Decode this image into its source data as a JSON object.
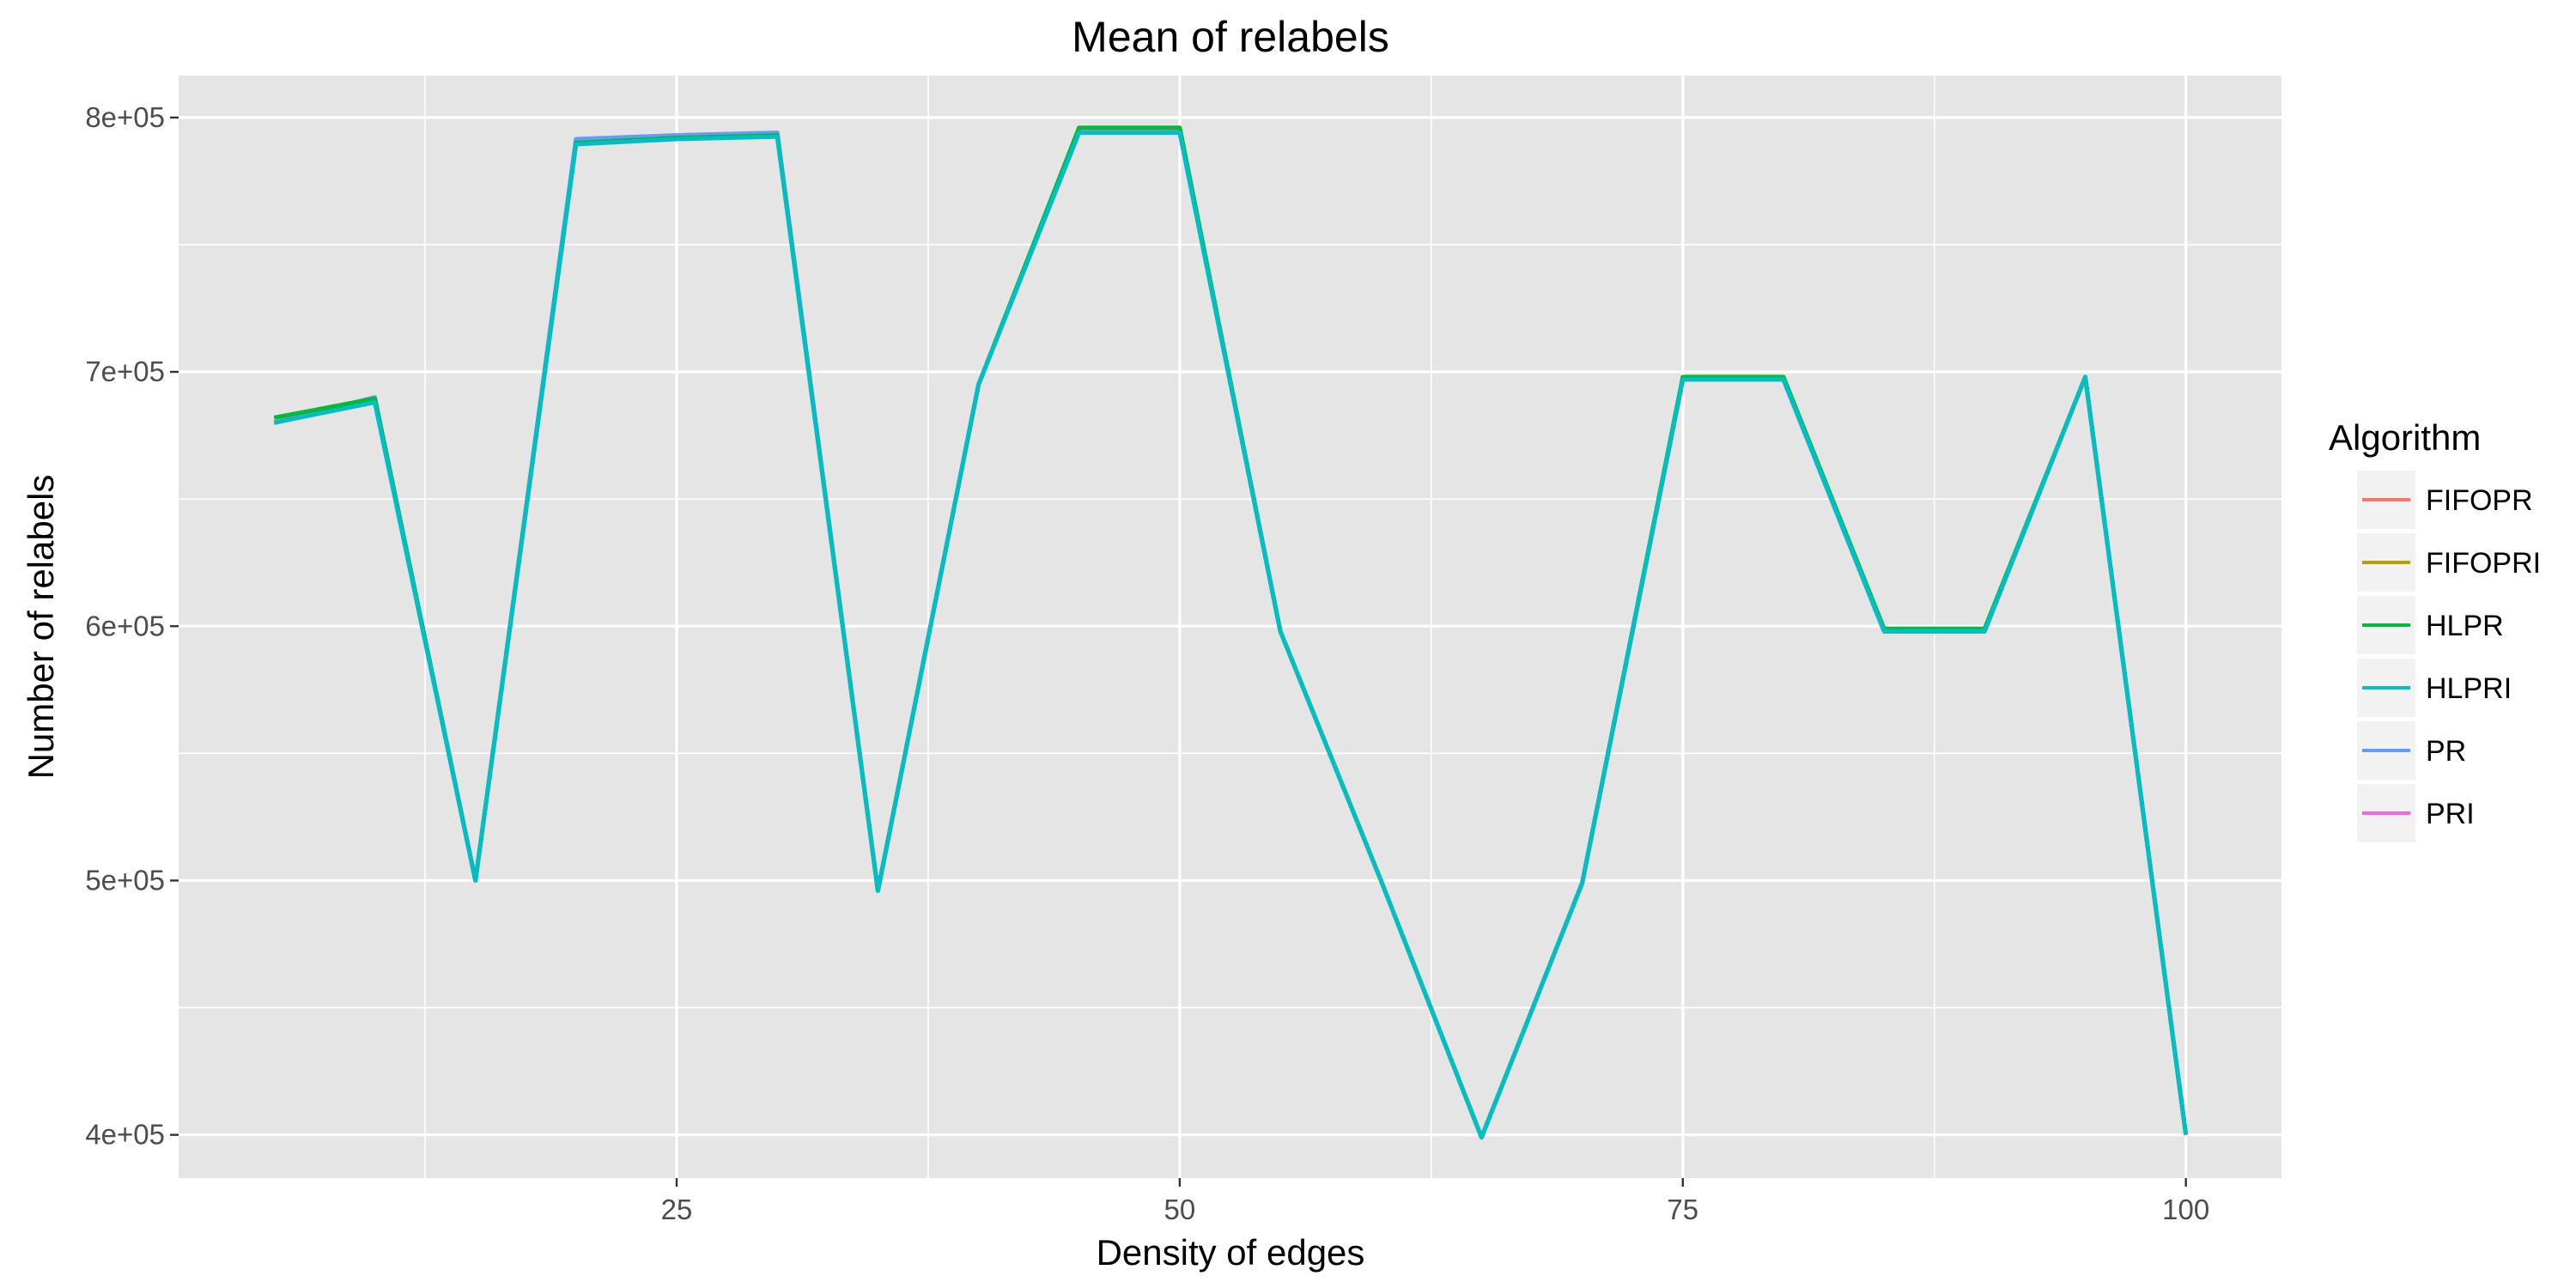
{
  "chart_data": {
    "type": "line",
    "title": "Mean of relabels",
    "xlabel": "Density of edges",
    "ylabel": "Number of relabels",
    "xlim": [
      0.25,
      104.75
    ],
    "ylim": [
      383000,
      816500
    ],
    "x_ticks": [
      25,
      50,
      75,
      100
    ],
    "x_tick_labels": [
      "25",
      "50",
      "75",
      "100"
    ],
    "y_ticks": [
      400000,
      500000,
      600000,
      700000,
      800000
    ],
    "y_tick_labels": [
      "4e+05",
      "5e+05",
      "6e+05",
      "7e+05",
      "8e+05"
    ],
    "grid": true,
    "legend_title": "Algorithm",
    "legend_position": "right",
    "x": [
      5,
      10,
      15,
      20,
      25,
      30,
      35,
      40,
      45,
      50,
      55,
      60,
      65,
      70,
      75,
      80,
      85,
      90,
      95,
      100
    ],
    "series": [
      {
        "name": "FIFOPR",
        "color": "#F8766D",
        "values": [
          680000,
          689000,
          500000,
          791000,
          793000,
          794000,
          496000,
          695000,
          795000,
          795000,
          598000,
          500000,
          399000,
          499000,
          697000,
          697000,
          598000,
          598000,
          698000,
          400000
        ]
      },
      {
        "name": "FIFOPRI",
        "color": "#B79F00",
        "values": [
          682000,
          689000,
          500000,
          790000,
          792000,
          793000,
          496000,
          695000,
          795000,
          795000,
          598000,
          500000,
          399000,
          499000,
          697000,
          697000,
          598000,
          598000,
          698000,
          400000
        ]
      },
      {
        "name": "HLPR",
        "color": "#00BA38",
        "values": [
          682000,
          689500,
          500000,
          790000,
          792000,
          793000,
          496000,
          695000,
          796000,
          796000,
          598000,
          500000,
          399000,
          499000,
          698000,
          698000,
          599000,
          599000,
          698000,
          400000
        ]
      },
      {
        "name": "HLPRI",
        "color": "#00BFC4",
        "values": [
          680000,
          688000,
          500000,
          789500,
          791500,
          792500,
          496000,
          695000,
          794000,
          794000,
          598000,
          500000,
          399000,
          499000,
          697000,
          697000,
          598000,
          598000,
          698000,
          400000
        ]
      },
      {
        "name": "PR",
        "color": "#619CFF",
        "values": [
          680000,
          690000,
          500000,
          791500,
          793000,
          794000,
          496000,
          695000,
          795500,
          795500,
          598000,
          500000,
          399000,
          499000,
          697000,
          697000,
          598000,
          598000,
          698000,
          400000
        ]
      },
      {
        "name": "PRI",
        "color": "#F564E3",
        "values": [
          680000,
          688500,
          500000,
          790000,
          792000,
          793000,
          496000,
          695000,
          794500,
          794500,
          598000,
          500000,
          399000,
          499000,
          697000,
          697000,
          598000,
          598000,
          698000,
          400000
        ]
      }
    ],
    "draw_order": [
      "FIFOPR",
      "FIFOPRI",
      "PR",
      "PRI",
      "HLPR",
      "HLPRI"
    ],
    "panel_background": "#E5E5E5",
    "legend_key_background": "#F2F2F2"
  }
}
